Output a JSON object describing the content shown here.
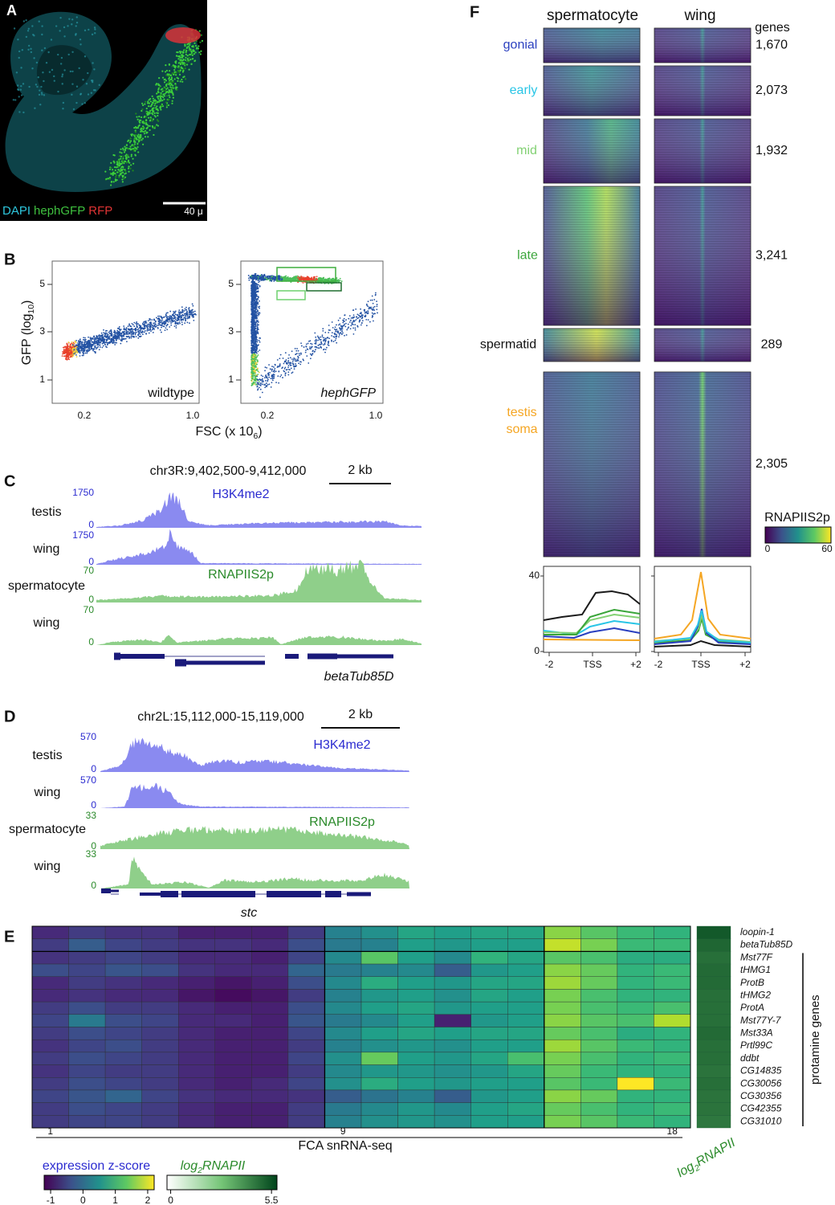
{
  "panel_a": {
    "label": "A",
    "stains": [
      "DAPI",
      "hephGFP",
      "RFP"
    ],
    "scale": "40 μ"
  },
  "panel_b": {
    "label": "B",
    "ylabel": [
      "GFP (log",
      "10",
      ")"
    ],
    "xlabel": [
      "FSC (x 10",
      "6",
      ")"
    ],
    "yticks": [
      "1",
      "3",
      "5"
    ],
    "xticks": [
      "0.2",
      "1.0"
    ],
    "plots": [
      "wildtype",
      "hephGFP"
    ]
  },
  "panel_c": {
    "label": "C",
    "locus": "chr3R:9,402,500-9,412,000",
    "scale": "2 kb",
    "marks": [
      "H3K4me2",
      "RNAPIIS2p"
    ],
    "tracks": [
      {
        "name": "testis",
        "max": "1750",
        "min": "0"
      },
      {
        "name": "wing",
        "max": "1750",
        "min": "0"
      },
      {
        "name": "spermatocyte",
        "max": "70",
        "min": "0"
      },
      {
        "name": "wing",
        "max": "70",
        "min": "0"
      }
    ],
    "gene": "betaTub85D"
  },
  "panel_d": {
    "label": "D",
    "locus": "chr2L:15,112,000-15,119,000",
    "scale": "2 kb",
    "marks": [
      "H3K4me2",
      "RNAPIIS2p"
    ],
    "tracks": [
      {
        "name": "testis",
        "max": "570",
        "min": "0"
      },
      {
        "name": "wing",
        "max": "570",
        "min": "0"
      },
      {
        "name": "spermatocyte",
        "max": "33",
        "min": "0"
      },
      {
        "name": "wing",
        "max": "33",
        "min": "0"
      }
    ],
    "gene": "stc"
  },
  "panel_e": {
    "label": "E",
    "genes": [
      "loopin-1",
      "betaTub85D",
      "Mst77F",
      "tHMG1",
      "ProtB",
      "tHMG2",
      "ProtA",
      "Mst77Y-7",
      "Mst33A",
      "Prtl99C",
      "ddbt",
      "CG14835",
      "CG30056",
      "CG30356",
      "CG42355",
      "CG31010"
    ],
    "values": [
      [
        -0.8,
        -0.6,
        -0.7,
        -0.7,
        -0.9,
        -0.9,
        -0.9,
        -0.6,
        0.3,
        0.5,
        0.8,
        0.7,
        0.8,
        0.8,
        1.6,
        1.3,
        1.1,
        1.0
      ],
      [
        -0.6,
        -0.2,
        -0.5,
        -0.6,
        -0.7,
        -0.7,
        -0.8,
        -0.4,
        0.2,
        0.3,
        0.7,
        0.6,
        0.7,
        0.7,
        1.9,
        1.5,
        1.1,
        1.1
      ],
      [
        -0.7,
        -0.6,
        -0.5,
        -0.6,
        -0.8,
        -0.8,
        -0.9,
        -0.5,
        0.4,
        1.3,
        0.7,
        0.4,
        1.0,
        0.8,
        1.3,
        1.2,
        0.9,
        0.9
      ],
      [
        -0.4,
        -0.5,
        -0.3,
        -0.4,
        -0.7,
        -0.8,
        -0.8,
        -0.1,
        0.2,
        0.3,
        0.4,
        -0.2,
        0.6,
        0.7,
        1.6,
        1.4,
        1.0,
        1.1
      ],
      [
        -0.8,
        -0.6,
        -0.7,
        -0.8,
        -0.9,
        -1.0,
        -0.9,
        -0.4,
        0.4,
        0.9,
        0.7,
        0.6,
        0.8,
        0.8,
        1.7,
        1.4,
        1.0,
        1.1
      ],
      [
        -0.8,
        -0.7,
        -0.8,
        -0.8,
        -1.0,
        -1.1,
        -1.0,
        -0.6,
        0.3,
        0.6,
        0.7,
        0.5,
        0.8,
        0.7,
        1.5,
        1.2,
        1.0,
        1.0
      ],
      [
        -0.6,
        -0.4,
        -0.6,
        -0.6,
        -0.8,
        -0.9,
        -0.9,
        -0.4,
        0.4,
        0.7,
        0.8,
        0.6,
        0.7,
        0.7,
        1.5,
        1.2,
        1.1,
        1.2
      ],
      [
        -0.5,
        0.2,
        -0.4,
        -0.5,
        -0.8,
        -0.8,
        -0.9,
        -0.3,
        0.2,
        0.4,
        0.7,
        -0.9,
        0.6,
        0.7,
        1.6,
        1.3,
        1.2,
        1.8
      ],
      [
        -0.6,
        -0.4,
        -0.5,
        -0.6,
        -0.8,
        -0.9,
        -0.9,
        -0.5,
        0.4,
        0.7,
        0.8,
        0.7,
        0.8,
        0.8,
        1.4,
        1.2,
        0.9,
        1.0
      ],
      [
        -0.7,
        -0.5,
        -0.4,
        -0.6,
        -0.8,
        -0.9,
        -0.9,
        -0.6,
        0.3,
        0.5,
        0.6,
        0.5,
        0.7,
        0.7,
        1.7,
        1.3,
        1.1,
        1.0
      ],
      [
        -0.6,
        -0.4,
        -0.5,
        -0.6,
        -0.8,
        -0.9,
        -0.9,
        -0.5,
        0.5,
        1.4,
        0.7,
        0.6,
        0.8,
        1.2,
        1.5,
        1.2,
        1.0,
        1.1
      ],
      [
        -0.7,
        -0.5,
        -0.6,
        -0.6,
        -0.8,
        -0.9,
        -0.9,
        -0.6,
        0.4,
        0.6,
        0.6,
        0.5,
        0.6,
        0.8,
        1.4,
        1.1,
        1.0,
        1.0
      ],
      [
        -0.6,
        -0.4,
        -0.5,
        -0.6,
        -0.8,
        -0.9,
        -0.8,
        -0.5,
        0.5,
        0.9,
        0.7,
        0.6,
        0.7,
        0.7,
        1.3,
        1.1,
        2.2,
        1.1
      ],
      [
        -0.5,
        -0.3,
        -0.1,
        -0.5,
        -0.7,
        -0.8,
        -0.8,
        -0.7,
        -0.2,
        0.1,
        0.3,
        -0.2,
        0.6,
        0.7,
        1.6,
        1.4,
        1.0,
        1.0
      ],
      [
        -0.6,
        -0.4,
        -0.5,
        -0.6,
        -0.8,
        -0.9,
        -0.9,
        -0.6,
        0.2,
        0.4,
        0.6,
        0.4,
        0.7,
        0.8,
        1.4,
        1.2,
        1.0,
        1.1
      ],
      [
        -0.6,
        -0.5,
        -0.5,
        -0.6,
        -0.8,
        -0.9,
        -0.9,
        -0.6,
        0.3,
        0.5,
        0.6,
        0.5,
        0.7,
        0.7,
        1.5,
        1.3,
        1.1,
        1.0
      ]
    ],
    "rnapii": [
      5.3,
      5.0,
      4.8,
      4.9,
      4.9,
      4.8,
      4.8,
      4.8,
      4.9,
      4.8,
      4.8,
      4.7,
      4.8,
      4.7,
      4.7,
      4.6
    ],
    "columns": [
      "1",
      "9",
      "18"
    ],
    "xlabel": "FCA snRNA-seq",
    "bracket": "protamine genes",
    "side_label": [
      "log",
      "2",
      "RNAPII"
    ],
    "legend_z": {
      "title": "expression z-score",
      "lim": [
        -1.2,
        2.2
      ],
      "ticks": [
        -1,
        0,
        1,
        2
      ]
    },
    "legend_r": {
      "title": [
        "log",
        "2",
        "RNAPII"
      ],
      "lim": [
        -0.2,
        5.8
      ],
      "ticks": [
        0,
        5.5
      ]
    }
  },
  "panel_f": {
    "label": "F",
    "columns": [
      "spermatocyte",
      "wing"
    ],
    "genes_header": "genes",
    "groups": [
      {
        "name": [
          "gonial"
        ],
        "count": "1,670"
      },
      {
        "name": [
          "early"
        ],
        "count": "2,073"
      },
      {
        "name": [
          "mid"
        ],
        "count": "1,932"
      },
      {
        "name": [
          "late"
        ],
        "count": "3,241"
      },
      {
        "name": [
          "spermatid"
        ],
        "count": "289"
      },
      {
        "name": [
          "testis",
          "soma"
        ],
        "count": "2,305"
      }
    ],
    "colorbar": {
      "title": "RNAPIIS2p",
      "ticks": [
        "0",
        "60"
      ]
    },
    "profile_yticks": [
      "40",
      "0"
    ],
    "profile_xticks": [
      "-2",
      "TSS",
      "+2"
    ]
  }
}
